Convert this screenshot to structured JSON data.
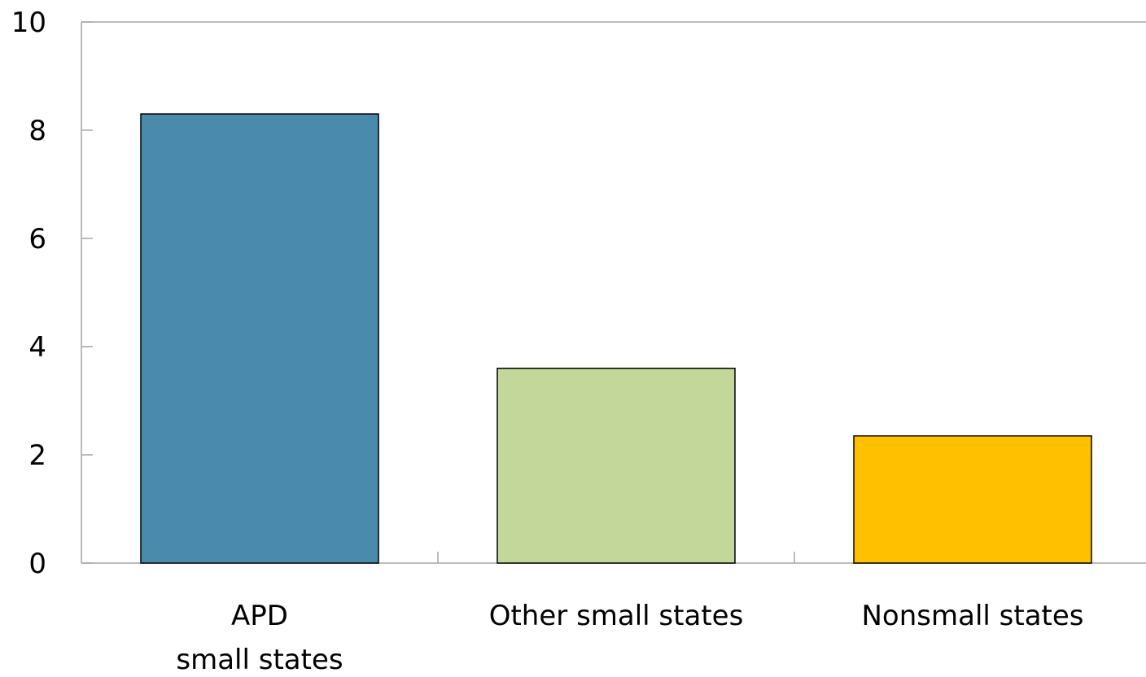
{
  "chart_data": {
    "type": "bar",
    "title": "",
    "xlabel": "",
    "ylabel": "",
    "categories": [
      "APD small states",
      "Other small states",
      "Nonsmall states"
    ],
    "category_lines": [
      [
        "APD",
        "small states"
      ],
      [
        "Other small states"
      ],
      [
        "Nonsmall states"
      ]
    ],
    "values": [
      8.3,
      3.6,
      2.35
    ],
    "bar_colors": [
      "#4A8BAD",
      "#C4D79B",
      "#FFC000"
    ],
    "ylim": [
      0,
      10
    ],
    "yticks": [
      "0",
      "2",
      "4",
      "6",
      "8",
      "10"
    ],
    "grid": false,
    "legend": "none"
  }
}
